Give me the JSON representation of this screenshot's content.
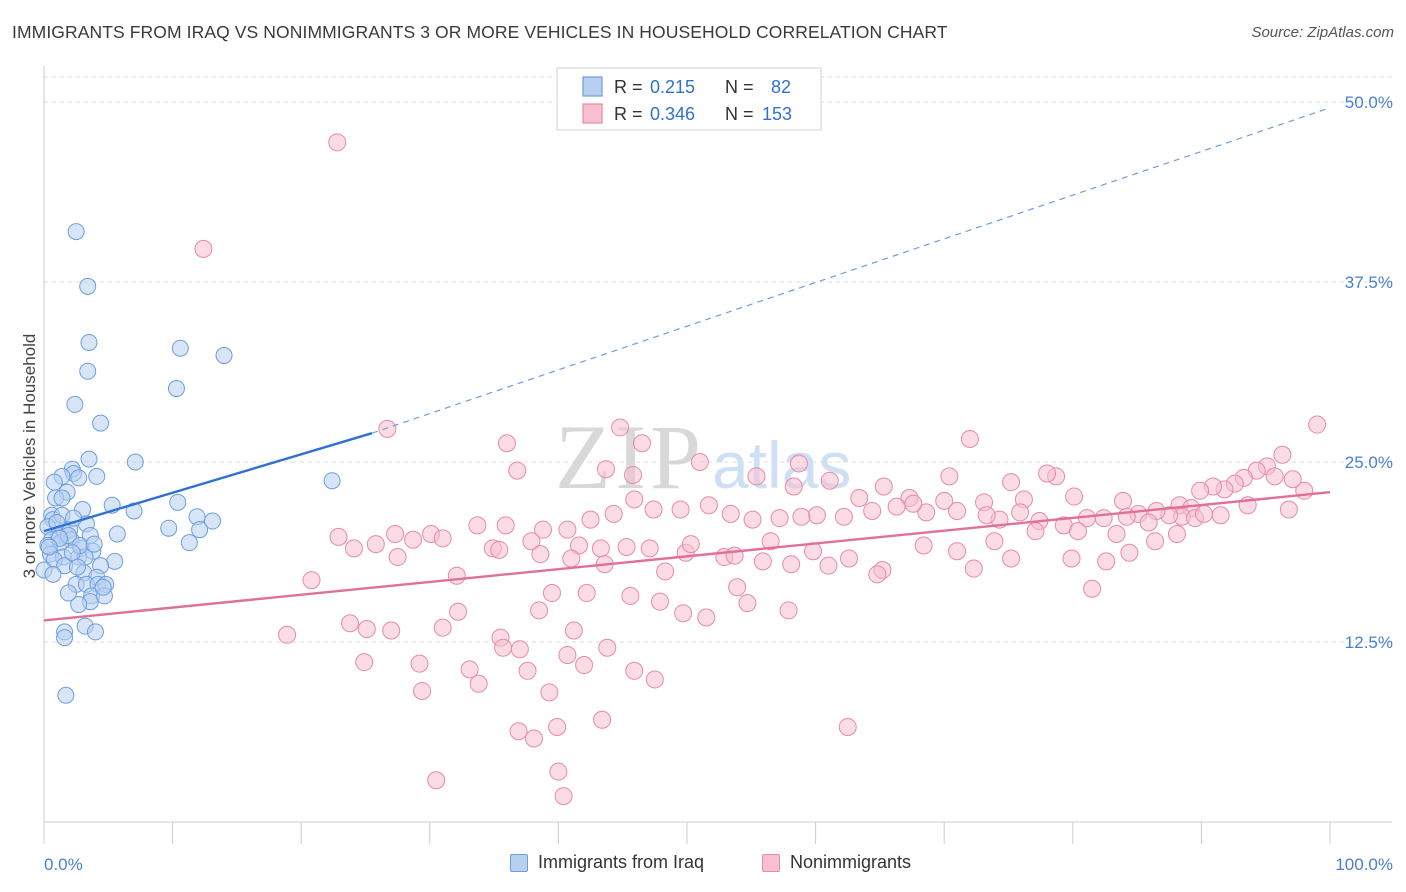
{
  "title": "IMMIGRANTS FROM IRAQ VS NONIMMIGRANTS 3 OR MORE VEHICLES IN HOUSEHOLD CORRELATION CHART",
  "source": "Source: ZipAtlas.com",
  "watermark": {
    "zip": "ZIP",
    "atlas": "atlas"
  },
  "colors": {
    "blue_fill": "#b8d0f0",
    "blue_stroke": "#6d9ee0",
    "blue_line": "#2f72cf",
    "pink_fill": "#f7bfd0",
    "pink_stroke": "#e88aaa",
    "pink_line": "#e0709a",
    "tick_label": "#4a7fd0",
    "grid": "#dcdcdc"
  },
  "legend_top": {
    "rows": [
      {
        "r_label": "R =",
        "r_value": "0.215",
        "n_label": "N =",
        "n_value": "82"
      },
      {
        "r_label": "R =",
        "r_value": "0.346",
        "n_label": "N =",
        "n_value": "153"
      }
    ]
  },
  "legend_bottom": {
    "items": [
      {
        "label": "Immigrants from Iraq"
      },
      {
        "label": "Nonimmigrants"
      }
    ]
  },
  "chart_data": {
    "type": "scatter",
    "title": "IMMIGRANTS FROM IRAQ VS NONIMMIGRANTS 3 OR MORE VEHICLES IN HOUSEHOLD CORRELATION CHART",
    "xlabel": "",
    "ylabel": "3 or more Vehicles in Household",
    "xlim": [
      0,
      100
    ],
    "ylim": [
      0,
      52.5
    ],
    "x_tick_labels": [
      {
        "value": 0,
        "label": "0.0%"
      },
      {
        "value": 100,
        "label": "100.0%"
      }
    ],
    "y_tick_labels": [
      {
        "value": 12.5,
        "label": "12.5%"
      },
      {
        "value": 25,
        "label": "25.0%"
      },
      {
        "value": 37.5,
        "label": "37.5%"
      },
      {
        "value": 50,
        "label": "50.0%"
      }
    ],
    "grid": true,
    "legend_position": "top-center",
    "series": [
      {
        "name": "Immigrants from Iraq",
        "color": "#6d9ee0",
        "trend": {
          "x": [
            0,
            25.5
          ],
          "y": [
            20.2,
            27.0
          ],
          "dashed_to": [
            100,
            49.6
          ]
        },
        "points": [
          [
            2.5,
            41.0
          ],
          [
            3.4,
            37.2
          ],
          [
            3.5,
            33.3
          ],
          [
            3.4,
            31.3
          ],
          [
            2.4,
            29.0
          ],
          [
            4.4,
            27.7
          ],
          [
            10.6,
            32.9
          ],
          [
            14.0,
            32.4
          ],
          [
            10.3,
            30.1
          ],
          [
            3.5,
            25.2
          ],
          [
            7.1,
            25.0
          ],
          [
            2.2,
            24.5
          ],
          [
            2.3,
            24.2
          ],
          [
            1.4,
            24.0
          ],
          [
            2.7,
            23.9
          ],
          [
            4.1,
            24.0
          ],
          [
            0.8,
            23.6
          ],
          [
            1.8,
            22.9
          ],
          [
            0.9,
            22.5
          ],
          [
            5.3,
            22.0
          ],
          [
            3.0,
            21.7
          ],
          [
            7.0,
            21.6
          ],
          [
            10.4,
            22.2
          ],
          [
            11.9,
            21.2
          ],
          [
            13.1,
            20.9
          ],
          [
            22.4,
            23.7
          ],
          [
            0.6,
            21.3
          ],
          [
            0.7,
            21.0
          ],
          [
            1.4,
            21.3
          ],
          [
            3.3,
            20.7
          ],
          [
            0.3,
            20.5
          ],
          [
            1.6,
            20.1
          ],
          [
            2.0,
            20.3
          ],
          [
            1.1,
            19.9
          ],
          [
            2.1,
            19.6
          ],
          [
            3.6,
            19.9
          ],
          [
            5.7,
            20.0
          ],
          [
            9.7,
            20.4
          ],
          [
            12.1,
            20.3
          ],
          [
            11.3,
            19.4
          ],
          [
            0.6,
            19.6
          ],
          [
            0.3,
            19.2
          ],
          [
            1.3,
            19.4
          ],
          [
            2.9,
            19.0
          ],
          [
            3.8,
            18.8
          ],
          [
            0.5,
            18.6
          ],
          [
            1.5,
            18.4
          ],
          [
            2.7,
            18.4
          ],
          [
            3.2,
            18.4
          ],
          [
            5.5,
            18.1
          ],
          [
            0.8,
            18.2
          ],
          [
            1.6,
            17.8
          ],
          [
            4.4,
            17.8
          ],
          [
            3.1,
            17.3
          ],
          [
            4.1,
            17.0
          ],
          [
            0.0,
            17.5
          ],
          [
            2.5,
            16.5
          ],
          [
            3.3,
            16.5
          ],
          [
            4.2,
            16.5
          ],
          [
            4.8,
            16.5
          ],
          [
            3.7,
            15.7
          ],
          [
            3.6,
            15.3
          ],
          [
            2.7,
            15.1
          ],
          [
            4.7,
            15.7
          ],
          [
            3.2,
            13.6
          ],
          [
            1.6,
            13.2
          ],
          [
            4.0,
            13.2
          ],
          [
            1.6,
            12.8
          ],
          [
            1.7,
            8.8
          ],
          [
            1.9,
            19.9
          ],
          [
            2.8,
            19.2
          ],
          [
            1.2,
            19.7
          ],
          [
            0.4,
            19.1
          ],
          [
            1.0,
            20.8
          ],
          [
            2.3,
            21.1
          ],
          [
            1.4,
            22.5
          ],
          [
            3.9,
            19.3
          ],
          [
            2.2,
            18.7
          ],
          [
            2.6,
            17.7
          ],
          [
            0.7,
            17.2
          ],
          [
            1.9,
            15.9
          ],
          [
            4.6,
            16.3
          ]
        ]
      },
      {
        "name": "Nonimmigrants",
        "color": "#e88aaa",
        "trend": {
          "x": [
            0,
            100
          ],
          "y": [
            14.0,
            22.9
          ]
        },
        "points": [
          [
            22.8,
            47.2
          ],
          [
            12.4,
            39.8
          ],
          [
            26.7,
            27.3
          ],
          [
            44.8,
            27.4
          ],
          [
            36.0,
            26.3
          ],
          [
            46.5,
            26.3
          ],
          [
            72.0,
            26.6
          ],
          [
            36.8,
            24.4
          ],
          [
            43.7,
            24.5
          ],
          [
            51.0,
            25.0
          ],
          [
            58.7,
            24.9
          ],
          [
            45.8,
            24.1
          ],
          [
            55.4,
            24.0
          ],
          [
            58.3,
            23.3
          ],
          [
            61.1,
            23.7
          ],
          [
            70.4,
            24.0
          ],
          [
            75.2,
            23.6
          ],
          [
            78.7,
            24.0
          ],
          [
            78.0,
            24.2
          ],
          [
            65.3,
            23.3
          ],
          [
            99.0,
            27.6
          ],
          [
            96.3,
            25.5
          ],
          [
            95.1,
            24.7
          ],
          [
            94.3,
            24.4
          ],
          [
            93.3,
            23.9
          ],
          [
            92.6,
            23.5
          ],
          [
            91.8,
            23.1
          ],
          [
            90.9,
            23.3
          ],
          [
            89.9,
            23.0
          ],
          [
            63.4,
            22.5
          ],
          [
            67.3,
            22.5
          ],
          [
            70.0,
            22.3
          ],
          [
            73.1,
            22.2
          ],
          [
            76.2,
            22.4
          ],
          [
            80.1,
            22.6
          ],
          [
            83.9,
            22.3
          ],
          [
            88.3,
            22.0
          ],
          [
            89.2,
            21.8
          ],
          [
            88.5,
            21.2
          ],
          [
            87.5,
            21.3
          ],
          [
            86.5,
            21.6
          ],
          [
            85.1,
            21.4
          ],
          [
            84.2,
            21.2
          ],
          [
            82.4,
            21.1
          ],
          [
            81.1,
            21.1
          ],
          [
            79.3,
            20.6
          ],
          [
            77.4,
            20.9
          ],
          [
            75.9,
            21.5
          ],
          [
            74.3,
            21.0
          ],
          [
            73.3,
            21.3
          ],
          [
            71.0,
            21.6
          ],
          [
            68.6,
            21.5
          ],
          [
            67.6,
            22.1
          ],
          [
            66.3,
            21.9
          ],
          [
            64.4,
            21.6
          ],
          [
            62.2,
            21.2
          ],
          [
            60.1,
            21.3
          ],
          [
            58.9,
            21.2
          ],
          [
            57.2,
            21.1
          ],
          [
            55.1,
            21.0
          ],
          [
            53.4,
            21.4
          ],
          [
            51.7,
            22.0
          ],
          [
            49.5,
            21.7
          ],
          [
            47.4,
            21.7
          ],
          [
            45.9,
            22.4
          ],
          [
            44.3,
            21.4
          ],
          [
            42.5,
            21.0
          ],
          [
            40.7,
            20.3
          ],
          [
            38.8,
            20.3
          ],
          [
            35.9,
            20.6
          ],
          [
            33.7,
            20.6
          ],
          [
            30.1,
            20.0
          ],
          [
            27.3,
            20.0
          ],
          [
            22.9,
            19.8
          ],
          [
            31.0,
            19.7
          ],
          [
            37.9,
            19.5
          ],
          [
            41.6,
            19.2
          ],
          [
            43.3,
            19.0
          ],
          [
            45.3,
            19.1
          ],
          [
            47.1,
            19.0
          ],
          [
            49.9,
            18.7
          ],
          [
            52.9,
            18.4
          ],
          [
            55.9,
            18.1
          ],
          [
            58.1,
            17.9
          ],
          [
            61.0,
            17.8
          ],
          [
            65.2,
            17.5
          ],
          [
            71.0,
            18.8
          ],
          [
            75.2,
            18.3
          ],
          [
            79.9,
            18.3
          ],
          [
            82.6,
            18.1
          ],
          [
            84.4,
            18.7
          ],
          [
            86.4,
            19.5
          ],
          [
            88.1,
            20.0
          ],
          [
            89.5,
            21.1
          ],
          [
            91.5,
            21.3
          ],
          [
            93.6,
            22.0
          ],
          [
            20.8,
            16.8
          ],
          [
            27.5,
            18.4
          ],
          [
            28.7,
            19.6
          ],
          [
            24.1,
            19.0
          ],
          [
            32.1,
            17.1
          ],
          [
            34.9,
            19.0
          ],
          [
            38.6,
            18.6
          ],
          [
            41.0,
            18.3
          ],
          [
            50.3,
            19.3
          ],
          [
            53.7,
            18.5
          ],
          [
            56.5,
            19.5
          ],
          [
            59.8,
            18.8
          ],
          [
            62.6,
            18.3
          ],
          [
            68.4,
            19.2
          ],
          [
            73.9,
            19.5
          ],
          [
            77.1,
            20.2
          ],
          [
            80.4,
            20.2
          ],
          [
            83.4,
            20.0
          ],
          [
            85.9,
            20.8
          ],
          [
            90.2,
            21.4
          ],
          [
            96.8,
            21.7
          ],
          [
            98.0,
            23.0
          ],
          [
            97.1,
            23.8
          ],
          [
            95.7,
            24.0
          ],
          [
            25.8,
            19.3
          ],
          [
            35.4,
            18.9
          ],
          [
            43.6,
            17.9
          ],
          [
            48.3,
            17.4
          ],
          [
            64.8,
            17.2
          ],
          [
            72.3,
            17.6
          ],
          [
            81.5,
            16.2
          ],
          [
            53.9,
            16.3
          ],
          [
            23.8,
            13.8
          ],
          [
            25.1,
            13.4
          ],
          [
            32.2,
            14.6
          ],
          [
            35.5,
            12.8
          ],
          [
            41.2,
            13.3
          ],
          [
            37.0,
            12.0
          ],
          [
            43.8,
            12.1
          ],
          [
            45.6,
            15.7
          ],
          [
            47.9,
            15.3
          ],
          [
            49.7,
            14.5
          ],
          [
            51.5,
            14.2
          ],
          [
            54.7,
            15.2
          ],
          [
            57.9,
            14.7
          ],
          [
            42.2,
            15.9
          ],
          [
            39.5,
            15.9
          ],
          [
            18.9,
            13.0
          ],
          [
            24.9,
            11.1
          ],
          [
            29.2,
            11.0
          ],
          [
            33.1,
            10.6
          ],
          [
            37.6,
            10.5
          ],
          [
            40.7,
            11.6
          ],
          [
            42.0,
            10.9
          ],
          [
            45.9,
            10.5
          ],
          [
            47.5,
            9.9
          ],
          [
            39.3,
            9.0
          ],
          [
            33.8,
            9.6
          ],
          [
            29.4,
            9.1
          ],
          [
            43.4,
            7.1
          ],
          [
            39.9,
            6.6
          ],
          [
            62.5,
            6.6
          ],
          [
            38.1,
            5.8
          ],
          [
            40.0,
            3.5
          ],
          [
            40.4,
            1.8
          ],
          [
            30.5,
            2.9
          ],
          [
            36.9,
            6.3
          ],
          [
            35.7,
            12.1
          ],
          [
            38.5,
            14.7
          ],
          [
            31.0,
            13.5
          ],
          [
            27.0,
            13.3
          ]
        ]
      }
    ]
  }
}
